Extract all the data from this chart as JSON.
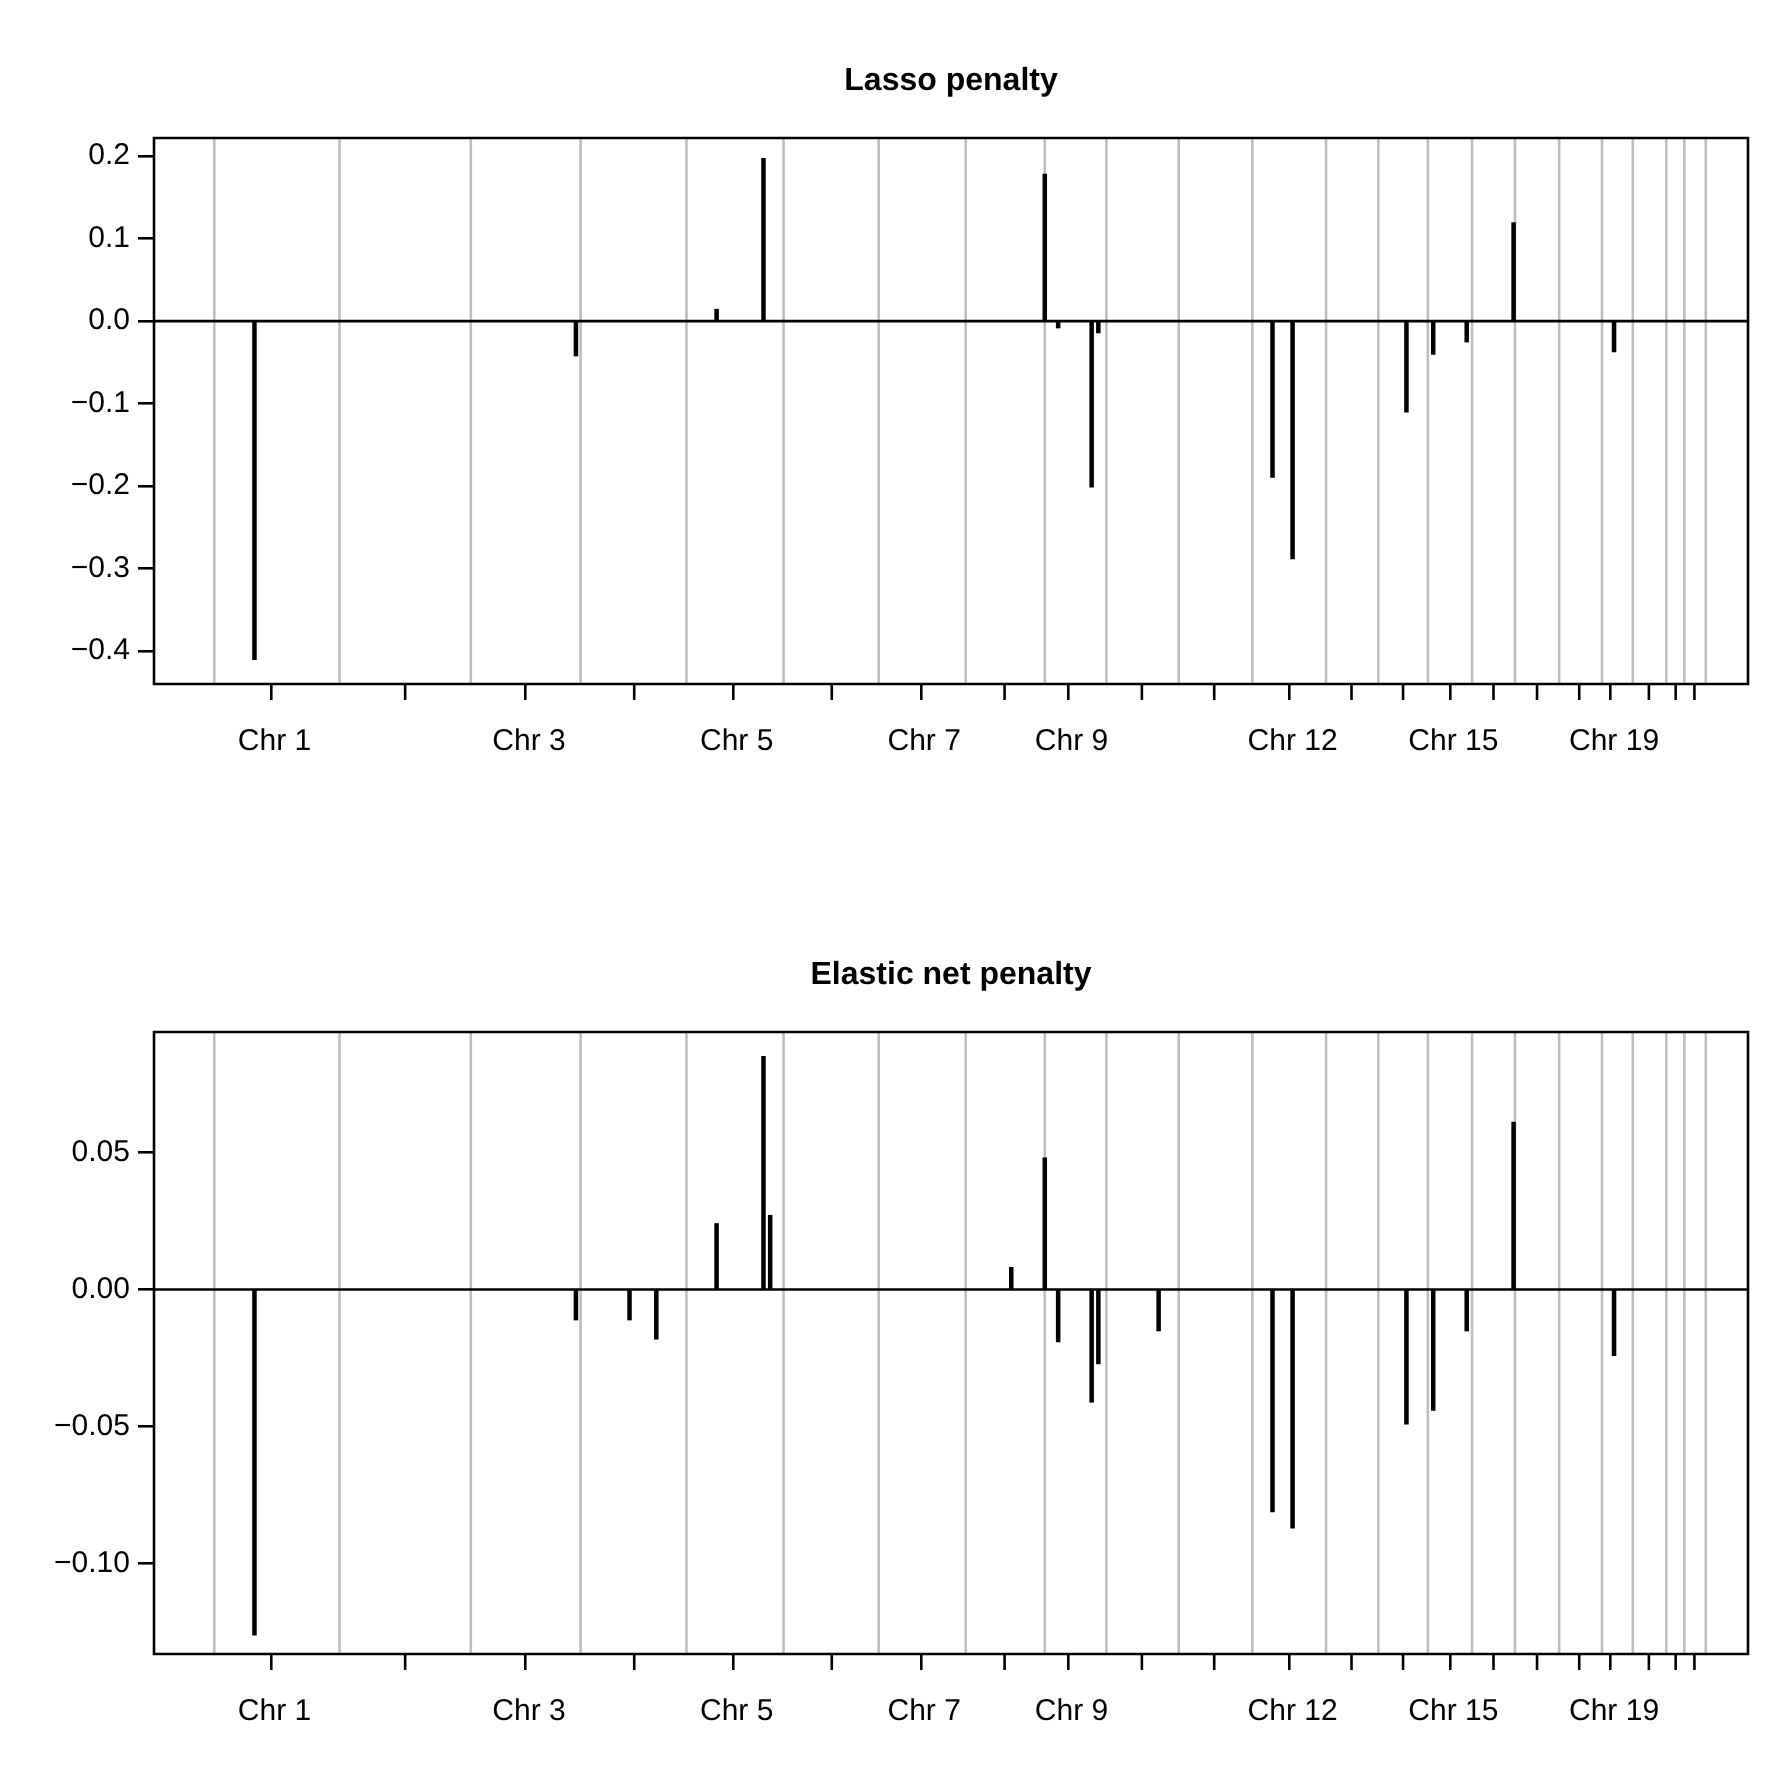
{
  "chart_data": [
    {
      "type": "bar",
      "title": "Lasso penalty",
      "categories": [
        null,
        null,
        null,
        null,
        null,
        null,
        null,
        null,
        null,
        null,
        null,
        null,
        null,
        null,
        null,
        null,
        null,
        null,
        "Chr 1",
        null,
        null,
        null,
        null,
        null,
        null,
        null,
        null,
        null,
        null,
        null,
        null,
        null,
        null,
        null,
        null,
        null,
        null,
        null,
        null,
        null,
        null,
        null,
        null,
        null,
        null,
        null,
        null,
        null,
        null,
        null,
        null,
        null,
        null,
        null,
        null,
        null,
        "Chr 3",
        null,
        null,
        null,
        null,
        null,
        null,
        null,
        null,
        null,
        null,
        null,
        null,
        null,
        null,
        null,
        null,
        null,
        null,
        null,
        null,
        null,
        null,
        null,
        null,
        null,
        null,
        null,
        null,
        null,
        null,
        "Chr 5",
        null,
        null,
        null,
        null,
        null,
        null,
        null,
        null,
        null,
        null,
        null,
        null,
        null,
        null,
        null,
        null,
        null,
        null,
        null,
        null,
        null,
        null,
        null,
        null,
        null,
        null,
        null,
        "Chr 7",
        null,
        null,
        null,
        null,
        null,
        null,
        null,
        null,
        null,
        null,
        null,
        null,
        null,
        null,
        null,
        null,
        null,
        null,
        null,
        null,
        null,
        "Chr 9",
        null,
        null,
        null,
        null,
        null,
        null,
        null,
        null,
        null,
        null,
        null,
        null,
        null,
        null,
        null,
        null,
        null,
        null,
        null,
        null,
        null,
        null,
        null,
        null,
        null,
        null,
        null,
        null,
        null,
        null,
        null,
        null,
        "Chr 12",
        null,
        null,
        null,
        null,
        null,
        null,
        null,
        null,
        null,
        null,
        null,
        null,
        null,
        null,
        null,
        null,
        null,
        null,
        null,
        null,
        null,
        null,
        null,
        "Chr 15",
        null,
        null,
        null,
        null,
        null,
        null,
        null,
        null,
        null,
        null,
        null,
        null,
        null,
        null,
        null,
        null,
        null,
        null,
        null,
        null,
        null,
        null,
        null,
        "Chr 19",
        null,
        null,
        null,
        null,
        null,
        null,
        null,
        null,
        null,
        null,
        null,
        null,
        null,
        null,
        null,
        null,
        null,
        null,
        null,
        null
      ],
      "series": [
        {
          "color": "#000000",
          "values": [
            null,
            null,
            null,
            null,
            null,
            null,
            null,
            null,
            null,
            null,
            null,
            null,
            null,
            null,
            null,
            -0.41,
            null,
            null,
            null,
            null,
            null,
            null,
            null,
            null,
            null,
            null,
            null,
            null,
            null,
            null,
            null,
            null,
            null,
            null,
            null,
            null,
            null,
            null,
            null,
            null,
            null,
            null,
            null,
            null,
            null,
            null,
            null,
            null,
            null,
            null,
            null,
            null,
            null,
            null,
            null,
            null,
            null,
            null,
            null,
            null,
            null,
            null,
            null,
            -0.042,
            null,
            null,
            null,
            null,
            null,
            null,
            null,
            null,
            null,
            null,
            null,
            null,
            null,
            null,
            null,
            null,
            null,
            null,
            null,
            null,
            0.014,
            null,
            null,
            null,
            null,
            null,
            null,
            0.197,
            null,
            null,
            null,
            null,
            null,
            null,
            null,
            null,
            null,
            null,
            null,
            null,
            null,
            null,
            null,
            null,
            null,
            null,
            null,
            null,
            null,
            null,
            null,
            null,
            null,
            null,
            null,
            null,
            null,
            null,
            null,
            null,
            null,
            null,
            null,
            null,
            null,
            null,
            null,
            null,
            null,
            0.178,
            null,
            -0.008,
            null,
            null,
            null,
            null,
            -0.201,
            -0.014,
            null,
            null,
            null,
            null,
            null,
            null,
            null,
            null,
            null,
            null,
            null,
            null,
            null,
            null,
            null,
            null,
            null,
            null,
            null,
            null,
            null,
            null,
            null,
            null,
            null,
            -0.189,
            null,
            null,
            -0.288,
            null,
            null,
            null,
            null,
            null,
            null,
            null,
            null,
            null,
            null,
            null,
            null,
            null,
            null,
            null,
            null,
            -0.11,
            null,
            null,
            null,
            -0.04,
            null,
            null,
            null,
            null,
            -0.025,
            null,
            null,
            null,
            null,
            null,
            null,
            0.119,
            null,
            null,
            null,
            null,
            null,
            null,
            null,
            null,
            null,
            null,
            null,
            null,
            null,
            null,
            -0.037,
            null,
            null,
            null,
            null,
            null,
            null,
            null,
            null,
            null,
            null,
            null,
            null,
            null,
            null,
            null,
            null,
            null,
            null,
            null,
            null
          ]
        }
      ],
      "ylim": [
        -0.44,
        0.222
      ],
      "yticks": [
        {
          "value": -0.4,
          "label": "−0.4"
        },
        {
          "value": -0.3,
          "label": "−0.3"
        },
        {
          "value": -0.2,
          "label": "−0.2"
        },
        {
          "value": -0.1,
          "label": "−0.1"
        },
        {
          "value": 0,
          "label": "0.0"
        },
        {
          "value": 0.1,
          "label": "0.1"
        },
        {
          "value": 0.2,
          "label": "0.2"
        }
      ],
      "ref_lines": [
        {
          "axis": "y",
          "value": 0,
          "color": "#000000"
        }
      ]
    },
    {
      "type": "bar",
      "title": "Elastic net penalty",
      "categories": [
        null,
        null,
        null,
        null,
        null,
        null,
        null,
        null,
        null,
        null,
        null,
        null,
        null,
        null,
        null,
        null,
        null,
        null,
        "Chr 1",
        null,
        null,
        null,
        null,
        null,
        null,
        null,
        null,
        null,
        null,
        null,
        null,
        null,
        null,
        null,
        null,
        null,
        null,
        null,
        null,
        null,
        null,
        null,
        null,
        null,
        null,
        null,
        null,
        null,
        null,
        null,
        null,
        null,
        null,
        null,
        null,
        null,
        "Chr 3",
        null,
        null,
        null,
        null,
        null,
        null,
        null,
        null,
        null,
        null,
        null,
        null,
        null,
        null,
        null,
        null,
        null,
        null,
        null,
        null,
        null,
        null,
        null,
        null,
        null,
        null,
        null,
        null,
        null,
        null,
        "Chr 5",
        null,
        null,
        null,
        null,
        null,
        null,
        null,
        null,
        null,
        null,
        null,
        null,
        null,
        null,
        null,
        null,
        null,
        null,
        null,
        null,
        null,
        null,
        null,
        null,
        null,
        null,
        null,
        "Chr 7",
        null,
        null,
        null,
        null,
        null,
        null,
        null,
        null,
        null,
        null,
        null,
        null,
        null,
        null,
        null,
        null,
        null,
        null,
        null,
        null,
        null,
        "Chr 9",
        null,
        null,
        null,
        null,
        null,
        null,
        null,
        null,
        null,
        null,
        null,
        null,
        null,
        null,
        null,
        null,
        null,
        null,
        null,
        null,
        null,
        null,
        null,
        null,
        null,
        null,
        null,
        null,
        null,
        null,
        null,
        null,
        "Chr 12",
        null,
        null,
        null,
        null,
        null,
        null,
        null,
        null,
        null,
        null,
        null,
        null,
        null,
        null,
        null,
        null,
        null,
        null,
        null,
        null,
        null,
        null,
        null,
        "Chr 15",
        null,
        null,
        null,
        null,
        null,
        null,
        null,
        null,
        null,
        null,
        null,
        null,
        null,
        null,
        null,
        null,
        null,
        null,
        null,
        null,
        null,
        null,
        null,
        "Chr 19",
        null,
        null,
        null,
        null,
        null,
        null,
        null,
        null,
        null,
        null,
        null,
        null,
        null,
        null,
        null,
        null,
        null,
        null,
        null,
        null
      ],
      "series": [
        {
          "color": "#000000",
          "values": [
            null,
            null,
            null,
            null,
            null,
            null,
            null,
            null,
            null,
            null,
            null,
            null,
            null,
            null,
            null,
            -0.126,
            null,
            null,
            null,
            null,
            null,
            null,
            null,
            null,
            null,
            null,
            null,
            null,
            null,
            null,
            null,
            null,
            null,
            null,
            null,
            null,
            null,
            null,
            null,
            null,
            null,
            null,
            null,
            null,
            null,
            null,
            null,
            null,
            null,
            null,
            null,
            null,
            null,
            null,
            null,
            null,
            null,
            null,
            null,
            null,
            null,
            null,
            null,
            -0.011,
            null,
            null,
            null,
            null,
            null,
            null,
            null,
            -0.011,
            null,
            null,
            null,
            -0.018,
            null,
            null,
            null,
            null,
            null,
            null,
            null,
            null,
            0.024,
            null,
            null,
            null,
            null,
            null,
            null,
            0.085,
            0.027,
            null,
            null,
            null,
            null,
            null,
            null,
            null,
            null,
            null,
            null,
            null,
            null,
            null,
            null,
            null,
            null,
            null,
            null,
            null,
            null,
            null,
            null,
            null,
            null,
            null,
            null,
            null,
            null,
            null,
            null,
            null,
            null,
            null,
            null,
            null,
            0.008,
            null,
            null,
            null,
            null,
            0.048,
            null,
            -0.019,
            null,
            null,
            null,
            null,
            -0.041,
            -0.027,
            null,
            null,
            null,
            null,
            null,
            null,
            null,
            null,
            -0.015,
            null,
            null,
            null,
            null,
            null,
            null,
            null,
            null,
            null,
            null,
            null,
            null,
            null,
            null,
            null,
            null,
            -0.081,
            null,
            null,
            -0.087,
            null,
            null,
            null,
            null,
            null,
            null,
            null,
            null,
            null,
            null,
            null,
            null,
            null,
            null,
            null,
            null,
            -0.049,
            null,
            null,
            null,
            -0.044,
            null,
            null,
            null,
            null,
            -0.015,
            null,
            null,
            null,
            null,
            null,
            null,
            0.061,
            null,
            null,
            null,
            null,
            null,
            null,
            null,
            null,
            null,
            null,
            null,
            null,
            null,
            null,
            -0.024,
            null,
            null,
            null,
            null,
            null,
            null,
            null,
            null,
            null,
            null,
            null,
            null,
            null,
            null,
            null,
            null,
            null,
            null,
            null,
            null
          ]
        }
      ],
      "ylim": [
        -0.133,
        0.094
      ],
      "yticks": [
        {
          "value": -0.1,
          "label": "−0.10"
        },
        {
          "value": -0.05,
          "label": "−0.05"
        },
        {
          "value": 0,
          "label": "0.00"
        },
        {
          "value": 0.05,
          "label": "0.05"
        }
      ],
      "ref_lines": [
        {
          "axis": "y",
          "value": 0,
          "color": "#000000"
        }
      ]
    }
  ]
}
